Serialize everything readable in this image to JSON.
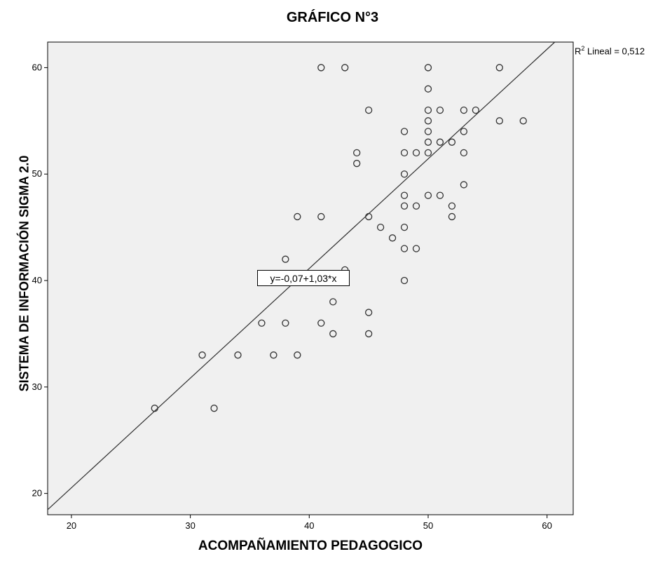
{
  "chart_data": {
    "type": "scatter",
    "title": "GRÁFICO N°3",
    "xlabel": "ACOMPAÑAMIENTO PEDAGOGICO",
    "ylabel": "SISTEMA DE INFORMACIÓN SIGMA 2.0",
    "xlim": [
      18,
      62.2
    ],
    "ylim": [
      18,
      62.4
    ],
    "xticks": [
      20,
      30,
      40,
      50,
      60
    ],
    "yticks": [
      20,
      30,
      40,
      50,
      60
    ],
    "grid": false,
    "plot_background": "#f0f0f0",
    "marker": "open-circle",
    "points": [
      [
        27,
        28
      ],
      [
        31,
        33
      ],
      [
        32,
        28
      ],
      [
        34,
        33
      ],
      [
        36,
        36
      ],
      [
        37,
        33
      ],
      [
        38,
        36
      ],
      [
        38,
        42
      ],
      [
        39,
        33
      ],
      [
        39,
        46
      ],
      [
        41,
        36
      ],
      [
        41,
        46
      ],
      [
        41,
        60
      ],
      [
        42,
        35
      ],
      [
        42,
        38
      ],
      [
        43,
        41
      ],
      [
        43,
        60
      ],
      [
        44,
        51
      ],
      [
        44,
        52
      ],
      [
        45,
        35
      ],
      [
        45,
        37
      ],
      [
        45,
        46
      ],
      [
        45,
        56
      ],
      [
        46,
        45
      ],
      [
        47,
        44
      ],
      [
        48,
        40
      ],
      [
        48,
        43
      ],
      [
        48,
        45
      ],
      [
        48,
        47
      ],
      [
        48,
        48
      ],
      [
        48,
        50
      ],
      [
        48,
        52
      ],
      [
        48,
        54
      ],
      [
        49,
        43
      ],
      [
        49,
        47
      ],
      [
        49,
        52
      ],
      [
        50,
        48
      ],
      [
        50,
        52
      ],
      [
        50,
        53
      ],
      [
        50,
        54
      ],
      [
        50,
        55
      ],
      [
        50,
        56
      ],
      [
        50,
        58
      ],
      [
        50,
        60
      ],
      [
        51,
        48
      ],
      [
        51,
        53
      ],
      [
        51,
        56
      ],
      [
        52,
        46
      ],
      [
        52,
        47
      ],
      [
        52,
        53
      ],
      [
        53,
        49
      ],
      [
        53,
        52
      ],
      [
        53,
        54
      ],
      [
        53,
        56
      ],
      [
        54,
        56
      ],
      [
        56,
        55
      ],
      [
        56,
        60
      ],
      [
        58,
        55
      ]
    ],
    "fit_line": {
      "intercept": -0.07,
      "slope": 1.03
    },
    "annotations": {
      "equation": "y=-0,07+1,03*x",
      "r2_label": "Lineal = 0,512",
      "r2_prefix": "R",
      "r2_sup": "2"
    }
  }
}
